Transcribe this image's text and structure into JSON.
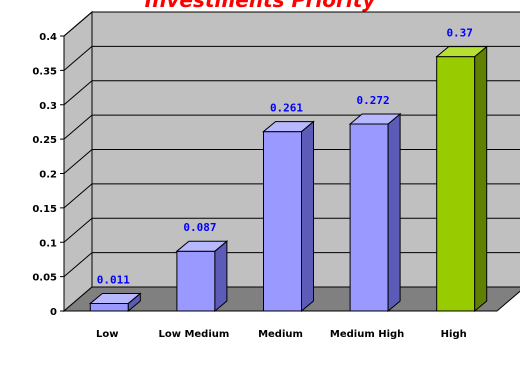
{
  "chart_data": {
    "type": "bar",
    "title": "Investments Priority",
    "categories": [
      "Low",
      "Low Medium",
      "Medium",
      "Medium High",
      "High"
    ],
    "values": [
      0.011,
      0.087,
      0.261,
      0.272,
      0.37
    ],
    "value_labels": [
      "0.011",
      "0.087",
      "0.261",
      "0.272",
      "0.37"
    ],
    "ylim": [
      0,
      0.4
    ],
    "yticks": [
      "0",
      "0.05",
      "0.1",
      "0.15",
      "0.2",
      "0.25",
      "0.3",
      "0.35",
      "0.4"
    ],
    "grid": true,
    "style": "3d",
    "colors": {
      "bar": "#9999ff",
      "bar_side": "#5c5cb8",
      "bar_top": "#b8b8ff",
      "highlight_bar": "#99cc00",
      "highlight_side": "#5f8000",
      "highlight_top": "#b8e033",
      "wall": "#c0c0c0",
      "floor": "#808080",
      "data_label": "#0000ff",
      "title": "#ff0000"
    }
  }
}
